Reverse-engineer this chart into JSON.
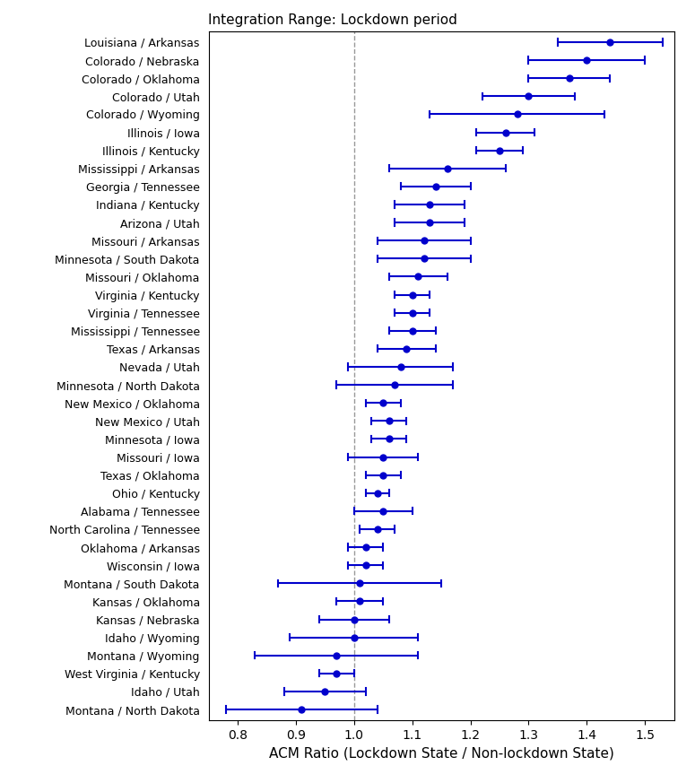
{
  "title": "Integration Range: Lockdown period",
  "xlabel": "ACM Ratio (Lockdown State / Non-lockdown State)",
  "xlim": [
    0.75,
    1.55
  ],
  "xticks": [
    0.8,
    0.9,
    1.0,
    1.1,
    1.2,
    1.3,
    1.4,
    1.5
  ],
  "vline": 1.0,
  "color": "#0000CC",
  "dot_size": 5,
  "categories": [
    "Louisiana / Arkansas",
    "Colorado / Nebraska",
    "Colorado / Oklahoma",
    "Colorado / Utah",
    "Colorado / Wyoming",
    "Illinois / Iowa",
    "Illinois / Kentucky",
    "Mississippi / Arkansas",
    "Georgia / Tennessee",
    "Indiana / Kentucky",
    "Arizona / Utah",
    "Missouri / Arkansas",
    "Minnesota / South Dakota",
    "Missouri / Oklahoma",
    "Virginia / Kentucky",
    "Virginia / Tennessee",
    "Mississippi / Tennessee",
    "Texas / Arkansas",
    "Nevada / Utah",
    "Minnesota / North Dakota",
    "New Mexico / Oklahoma",
    "New Mexico / Utah",
    "Minnesota / Iowa",
    "Missouri / Iowa",
    "Texas / Oklahoma",
    "Ohio / Kentucky",
    "Alabama / Tennessee",
    "North Carolina / Tennessee",
    "Oklahoma / Arkansas",
    "Wisconsin / Iowa",
    "Montana / South Dakota",
    "Kansas / Oklahoma",
    "Kansas / Nebraska",
    "Idaho / Wyoming",
    "Montana / Wyoming",
    "West Virginia / Kentucky",
    "Idaho / Utah",
    "Montana / North Dakota"
  ],
  "centers": [
    1.44,
    1.4,
    1.37,
    1.3,
    1.28,
    1.26,
    1.25,
    1.16,
    1.14,
    1.13,
    1.13,
    1.12,
    1.12,
    1.11,
    1.1,
    1.1,
    1.1,
    1.09,
    1.08,
    1.07,
    1.05,
    1.06,
    1.06,
    1.05,
    1.05,
    1.04,
    1.05,
    1.04,
    1.02,
    1.02,
    1.01,
    1.01,
    1.0,
    1.0,
    0.97,
    0.97,
    0.95,
    0.91
  ],
  "lower": [
    1.35,
    1.3,
    1.3,
    1.22,
    1.13,
    1.21,
    1.21,
    1.06,
    1.08,
    1.07,
    1.07,
    1.04,
    1.04,
    1.06,
    1.07,
    1.07,
    1.06,
    1.04,
    0.99,
    0.97,
    1.02,
    1.03,
    1.03,
    0.99,
    1.02,
    1.02,
    1.0,
    1.01,
    0.99,
    0.99,
    0.87,
    0.97,
    0.94,
    0.89,
    0.83,
    0.94,
    0.88,
    0.78
  ],
  "upper": [
    1.53,
    1.5,
    1.44,
    1.38,
    1.43,
    1.31,
    1.29,
    1.26,
    1.2,
    1.19,
    1.19,
    1.2,
    1.2,
    1.16,
    1.13,
    1.13,
    1.14,
    1.14,
    1.17,
    1.17,
    1.08,
    1.09,
    1.09,
    1.11,
    1.08,
    1.06,
    1.1,
    1.07,
    1.05,
    1.05,
    1.15,
    1.05,
    1.06,
    1.11,
    1.11,
    1.0,
    1.02,
    1.04
  ]
}
